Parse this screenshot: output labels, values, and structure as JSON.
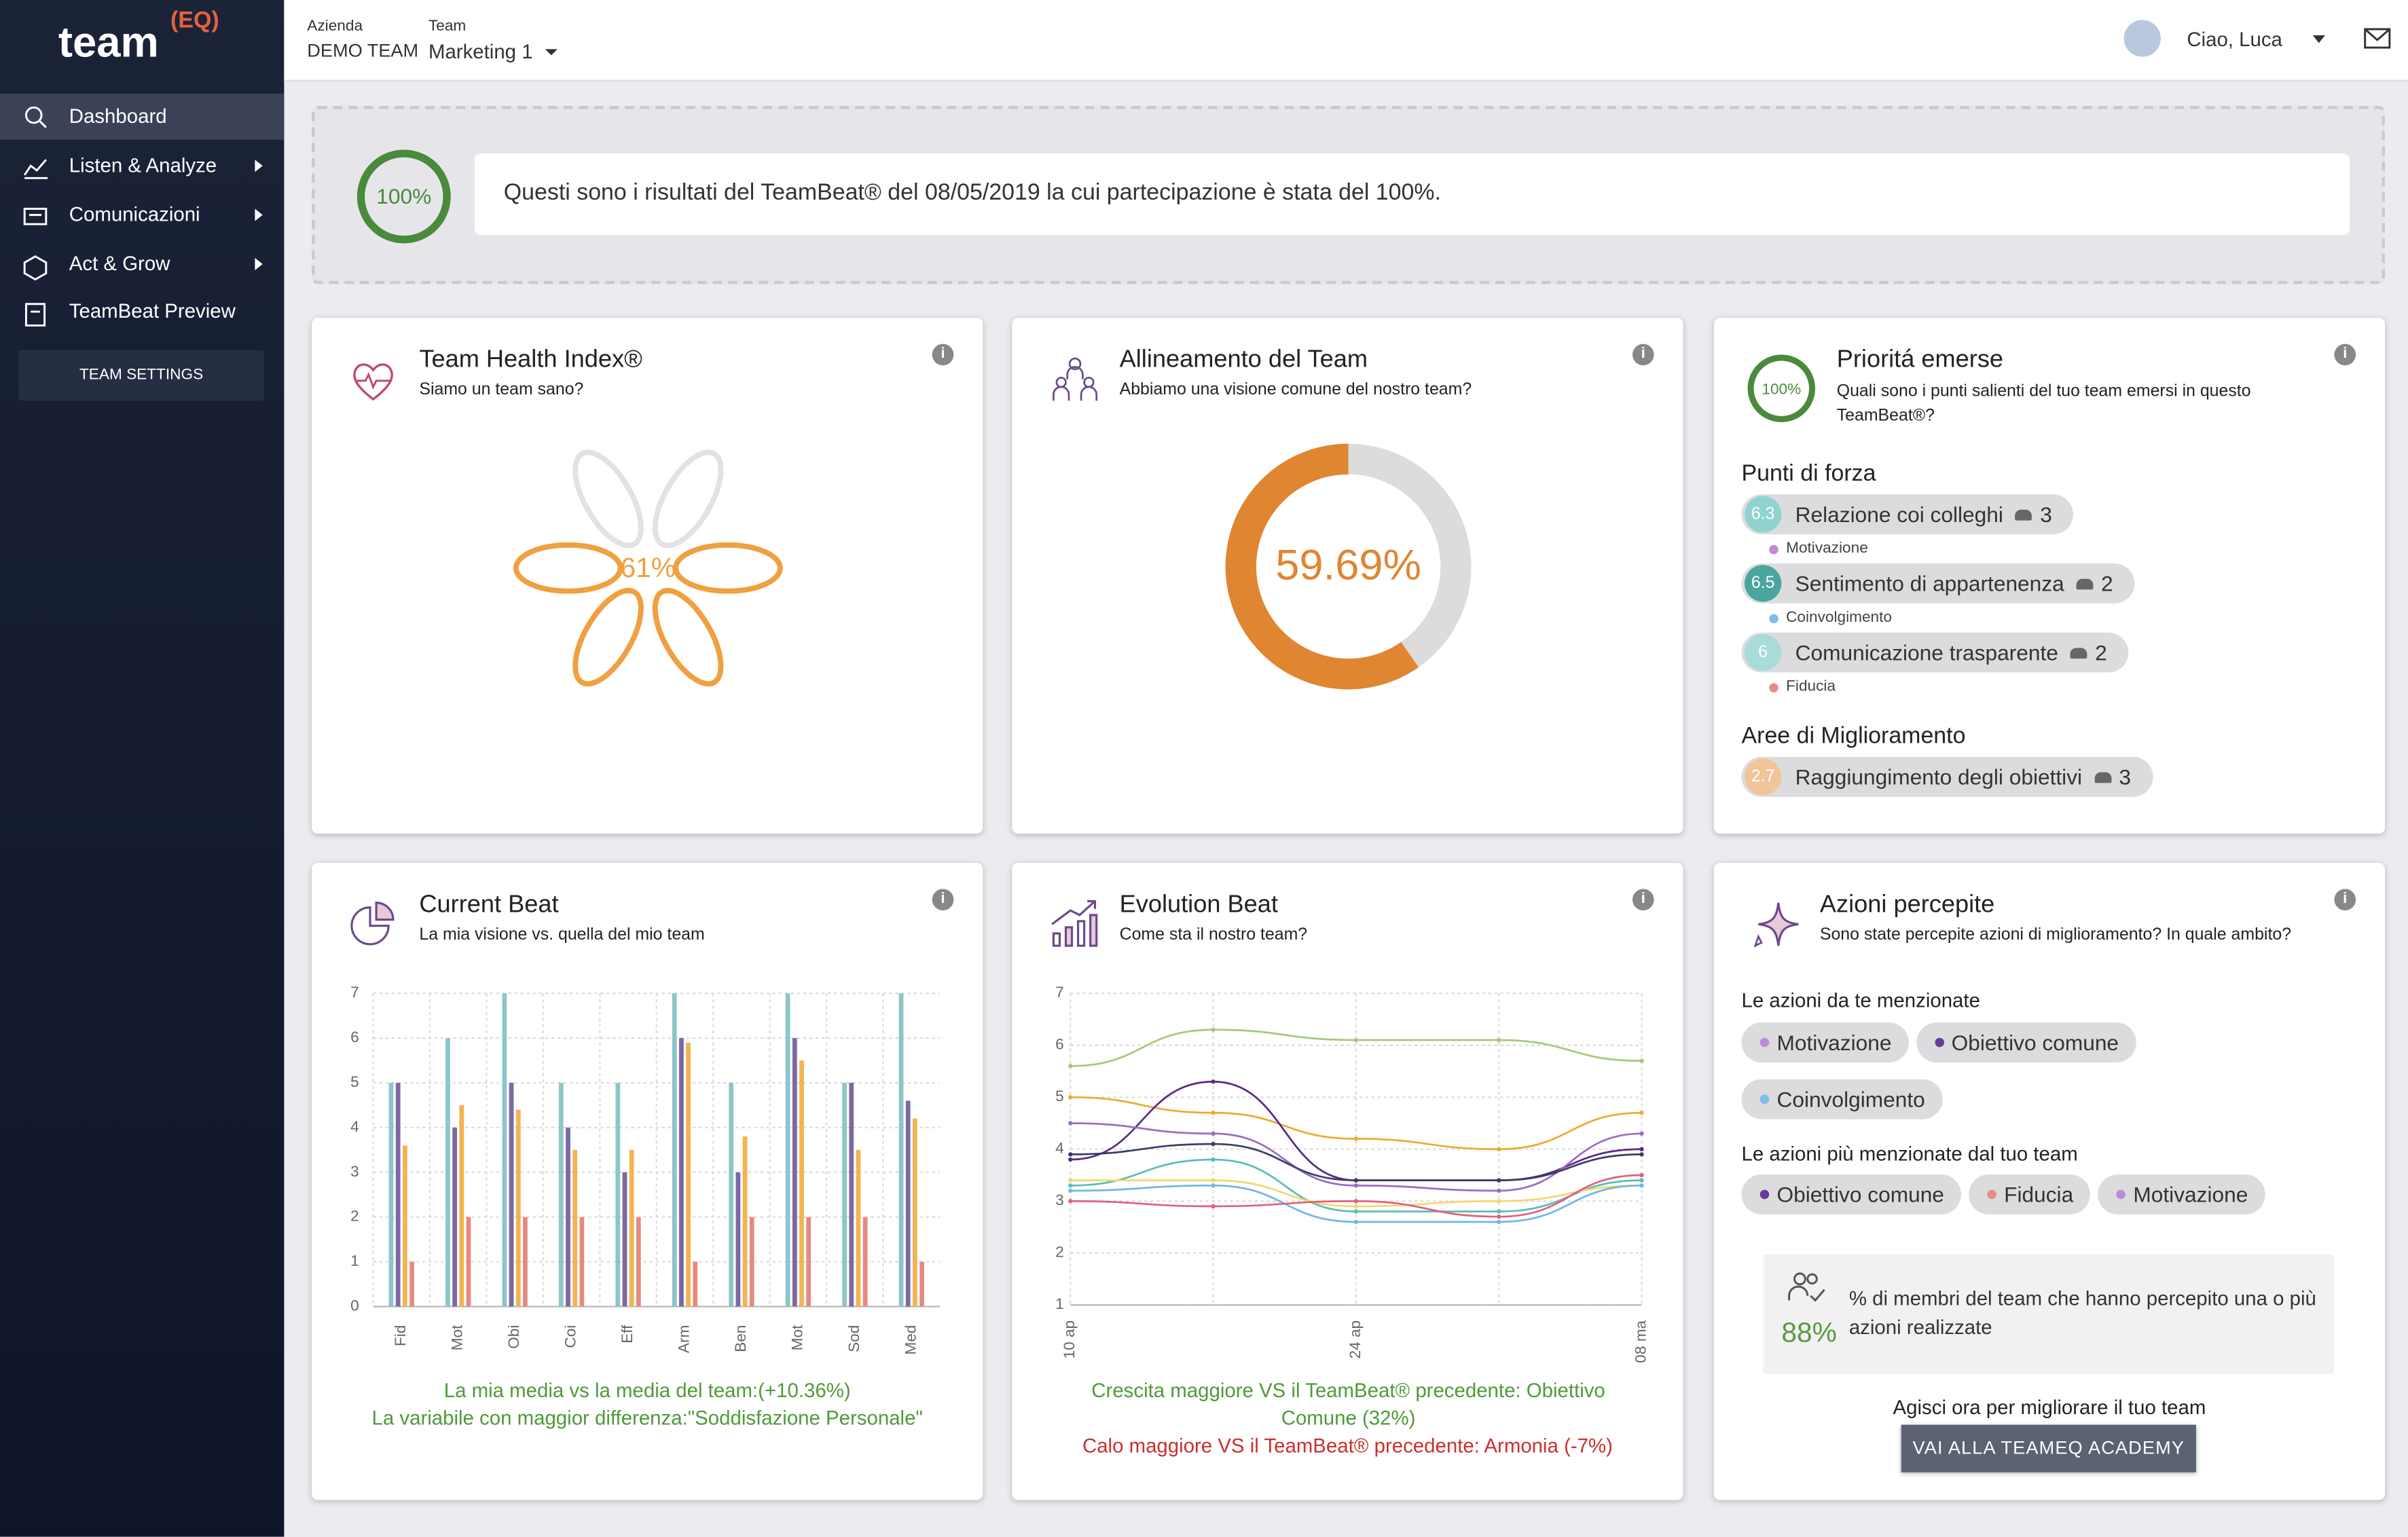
{
  "sidebar": {
    "logo": "team",
    "logo_sup": "(EQ)",
    "menu": [
      "Dashboard",
      "Listen & Analyze",
      "Comunicazioni",
      "Act & Grow",
      "TeamBeat Preview"
    ],
    "settings": "TEAM SETTINGS"
  },
  "header": {
    "company_label": "Azienda",
    "company": "DEMO TEAM",
    "team_label": "Team",
    "team": "Marketing 1",
    "greeting": "Ciao, Luca"
  },
  "banner": {
    "participation": 100,
    "participation_label": "100%",
    "text": "Questi sono i risultati del TeamBeat® del 08/05/2019 la cui partecipazione è stata del 100%."
  },
  "cards": {
    "health": {
      "title": "Team Health Index®",
      "subtitle": "Siamo un team sano?",
      "value": 61,
      "value_label": "61%",
      "color": "#f0a040"
    },
    "alignment": {
      "title": "Allineamento del Team",
      "subtitle": "Abbiamo una visione comune del nostro team?",
      "value": 59.69,
      "value_label": "59.69%",
      "color": "#e08530"
    },
    "priorities": {
      "title": "Prioritá emerse",
      "subtitle": "Quali sono i punti salienti del tuo team emersi in questo TeamBeat®?",
      "value": 100,
      "value_label": "100%",
      "strengths_title": "Punti di forza",
      "strengths": [
        {
          "score": 6.3,
          "score_color": "#8fd3cf",
          "label": "Relazione coi colleghi",
          "count": 3,
          "category": "Motivazione",
          "category_color": "#c08ad8"
        },
        {
          "score": 6.5,
          "score_color": "#4aa59f",
          "label": "Sentimento di appartenenza",
          "count": 2,
          "category": "Coinvolgimento",
          "category_color": "#7dbde8"
        },
        {
          "score": 6,
          "score_color": "#a8dcd8",
          "label": "Comunicazione trasparente",
          "count": 2,
          "category": "Fiducia",
          "category_color": "#e88a8a"
        }
      ],
      "improvements_title": "Aree di Miglioramento",
      "improvements": [
        {
          "score": 2.7,
          "score_color": "#f2c49a",
          "label": "Raggiungimento degli obiettivi",
          "count": 3
        }
      ]
    },
    "current_beat": {
      "title": "Current Beat",
      "subtitle": "La mia visione vs. quella del mio team",
      "notes": [
        "La mia media vs la media del team:(+10.36%)",
        "La variabile con maggior differenza:\"Soddisfazione Personale\""
      ]
    },
    "evolution_beat": {
      "title": "Evolution Beat",
      "subtitle": "Come sta il nostro team?",
      "growth": "Crescita maggiore VS il TeamBeat® precedente:  Obiettivo Comune (32%)",
      "drop": "Calo maggiore VS il TeamBeat® precedente:  Armonia (-7%)"
    },
    "actions": {
      "title": "Azioni percepite",
      "subtitle": "Sono state percepite azioni di miglioramento? In quale ambito?",
      "mine_title": "Le azioni da te menzionate",
      "mine": [
        {
          "label": "Motivazione",
          "color": "#c08ad8"
        },
        {
          "label": "Obiettivo comune",
          "color": "#6a3a96"
        },
        {
          "label": "Coinvolgimento",
          "color": "#7dbde8"
        }
      ],
      "team_title": "Le azioni più menzionate dal tuo team",
      "team": [
        {
          "label": "Obiettivo comune",
          "color": "#6a3a96"
        },
        {
          "label": "Fiducia",
          "color": "#e88a8a"
        },
        {
          "label": "Motivazione",
          "color": "#c08ad8"
        }
      ],
      "stat": 88,
      "stat_label": "88%",
      "stat_text": "% di membri del team che hanno percepito una o più azioni realizzate",
      "cta": "Agisci ora per migliorare il tuo team",
      "button": "VAI ALLA TEAMEQ ACADEMY"
    }
  },
  "chart_data": [
    {
      "type": "bar",
      "categories": [
        "Fid",
        "Mot",
        "Obi",
        "Coi",
        "Eff",
        "Arm",
        "Ben",
        "Mot",
        "Sod",
        "Med"
      ],
      "series": [
        {
          "color": "#8cc6c9",
          "values": [
            5,
            6,
            7,
            5,
            5,
            7,
            5,
            7,
            5,
            7
          ]
        },
        {
          "color": "#7d68a3",
          "values": [
            5,
            4,
            5,
            4,
            3,
            6,
            3,
            6,
            5,
            4.6
          ]
        },
        {
          "color": "#f2b452",
          "values": [
            3.6,
            4.5,
            4.4,
            3.5,
            3.5,
            5.9,
            3.8,
            5.5,
            3.5,
            4.2
          ]
        },
        {
          "color": "#e68a80",
          "values": [
            1,
            2,
            2,
            2,
            2,
            1,
            2,
            2,
            2,
            1
          ]
        }
      ],
      "ylim": [
        0,
        7
      ],
      "yticks": [
        0,
        1,
        2,
        3,
        4,
        5,
        6,
        7
      ],
      "grid": true
    },
    {
      "type": "line",
      "categories": [
        "10 ap",
        null,
        "24 ap",
        null,
        "08 ma"
      ],
      "series": [
        {
          "color": "#a6c97a",
          "values": [
            5.6,
            6.3,
            6.1,
            6.1,
            5.7
          ]
        },
        {
          "color": "#f0a830",
          "values": [
            5.0,
            4.7,
            4.2,
            4.0,
            4.7
          ]
        },
        {
          "color": "#5b2a86",
          "values": [
            3.8,
            5.3,
            3.4,
            3.4,
            4.0
          ]
        },
        {
          "color": "#9b6cc2",
          "values": [
            4.5,
            4.3,
            3.3,
            3.2,
            4.3
          ]
        },
        {
          "color": "#3b3b6b",
          "values": [
            3.9,
            4.1,
            3.4,
            3.4,
            3.9
          ]
        },
        {
          "color": "#5bbcb8",
          "values": [
            3.3,
            3.8,
            2.8,
            2.8,
            3.4
          ]
        },
        {
          "color": "#f5d76e",
          "values": [
            3.4,
            3.4,
            2.9,
            3.0,
            3.3
          ]
        },
        {
          "color": "#6fb7e8",
          "values": [
            3.2,
            3.3,
            2.6,
            2.6,
            3.3
          ]
        },
        {
          "color": "#e0607e",
          "values": [
            3.0,
            2.9,
            3.0,
            2.7,
            3.5
          ]
        }
      ],
      "ylim": [
        1,
        7
      ],
      "yticks": [
        1,
        2,
        3,
        4,
        5,
        6,
        7
      ],
      "grid": true
    }
  ]
}
